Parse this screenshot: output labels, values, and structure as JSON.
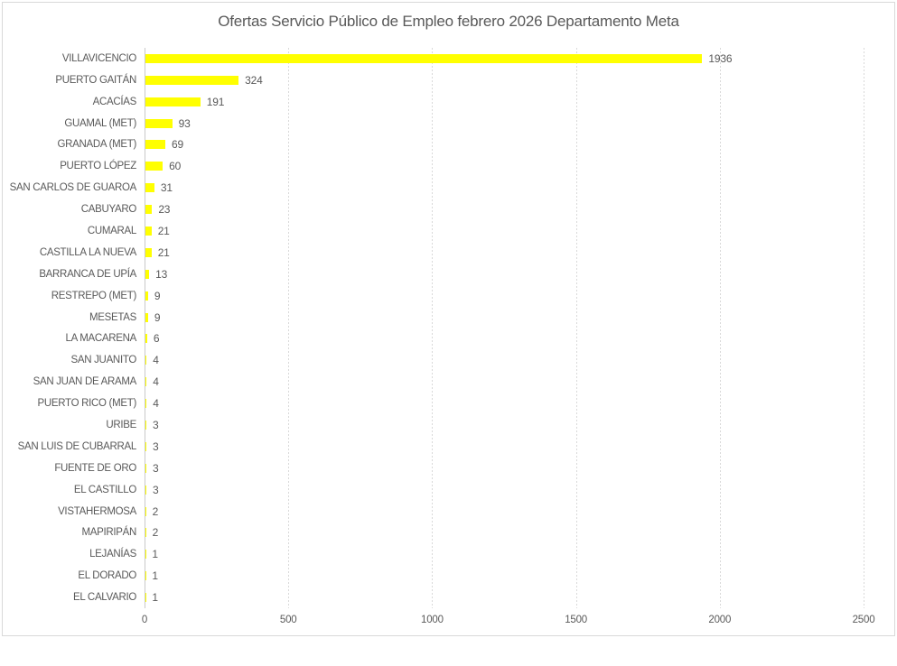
{
  "chart_data": {
    "type": "bar",
    "orientation": "horizontal",
    "title": "Ofertas Servicio Público de Empleo febrero 2026 Departamento Meta",
    "categories": [
      "VILLAVICENCIO",
      "PUERTO GAITÁN",
      "ACACÍAS",
      "GUAMAL (MET)",
      "GRANADA (MET)",
      "PUERTO LÓPEZ",
      "SAN CARLOS DE GUAROA",
      "CABUYARO",
      "CUMARAL",
      "CASTILLA LA NUEVA",
      "BARRANCA DE UPÍA",
      "RESTREPO (MET)",
      "MESETAS",
      "LA MACARENA",
      "SAN JUANITO",
      "SAN JUAN DE ARAMA",
      "PUERTO RICO (MET)",
      "URIBE",
      "SAN LUIS DE CUBARRAL",
      "FUENTE DE ORO",
      "EL CASTILLO",
      "VISTAHERMOSA",
      "MAPIRIPÁN",
      "LEJANÍAS",
      "EL DORADO",
      "EL CALVARIO"
    ],
    "values": [
      1936,
      324,
      191,
      93,
      69,
      60,
      31,
      23,
      21,
      21,
      13,
      9,
      9,
      6,
      4,
      4,
      4,
      3,
      3,
      3,
      3,
      2,
      2,
      1,
      1,
      1
    ],
    "xlabel": "",
    "ylabel": "",
    "xlim": [
      0,
      2500
    ],
    "xticks": [
      0,
      500,
      1000,
      1500,
      2000,
      2500
    ],
    "grid": true,
    "legend": false,
    "value_labels_shown": true,
    "bar_color": "#ffff00",
    "text_color": "#595959",
    "gridline_color": "#d9d9d9",
    "axis_line_color": "#c9c9c9",
    "border_color": "#d9d9d9"
  }
}
